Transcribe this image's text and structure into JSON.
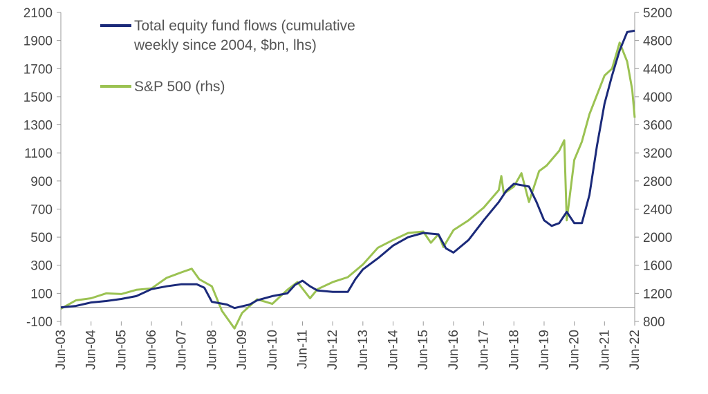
{
  "chart_data": {
    "type": "line",
    "title": "",
    "xlabel": "",
    "ylabel": "",
    "y_left": {
      "min": -100,
      "max": 2100,
      "ticks": [
        -100,
        100,
        300,
        500,
        700,
        900,
        1100,
        1300,
        1500,
        1700,
        1900,
        2100
      ]
    },
    "y_right": {
      "min": 800,
      "max": 5200,
      "ticks": [
        800,
        1200,
        1600,
        2000,
        2400,
        2800,
        3200,
        3600,
        4000,
        4400,
        4800,
        5200
      ]
    },
    "x_range": [
      "2003-06",
      "2022-06"
    ],
    "x_ticks": [
      {
        "date": "2003-06",
        "label": "Jun-03"
      },
      {
        "date": "2004-06",
        "label": "Jun-04"
      },
      {
        "date": "2005-06",
        "label": "Jun-05"
      },
      {
        "date": "2006-06",
        "label": "Jun-06"
      },
      {
        "date": "2007-06",
        "label": "Jun-07"
      },
      {
        "date": "2008-06",
        "label": "Jun-08"
      },
      {
        "date": "2009-06",
        "label": "Jun-09"
      },
      {
        "date": "2010-06",
        "label": "Jun-10"
      },
      {
        "date": "2011-06",
        "label": "Jun-11"
      },
      {
        "date": "2012-06",
        "label": "Jun-12"
      },
      {
        "date": "2013-06",
        "label": "Jun-13"
      },
      {
        "date": "2014-06",
        "label": "Jun-14"
      },
      {
        "date": "2015-06",
        "label": "Jun-15"
      },
      {
        "date": "2016-06",
        "label": "Jun-16"
      },
      {
        "date": "2017-06",
        "label": "Jun-17"
      },
      {
        "date": "2018-06",
        "label": "Jun-18"
      },
      {
        "date": "2019-06",
        "label": "Jun-19"
      },
      {
        "date": "2020-06",
        "label": "Jun-20"
      },
      {
        "date": "2021-06",
        "label": "Jun-21"
      },
      {
        "date": "2022-06",
        "label": "Jun-22"
      }
    ],
    "legend_position": "top-left",
    "grid": false,
    "series": [
      {
        "name": "Total equity fund flows (cumulative weekly since 2004, $bn, lhs)",
        "axis": "left",
        "color": "#1b2a7a",
        "points": [
          [
            "2003-06",
            0
          ],
          [
            "2003-12",
            10
          ],
          [
            "2004-06",
            35
          ],
          [
            "2004-12",
            45
          ],
          [
            "2005-06",
            60
          ],
          [
            "2005-12",
            80
          ],
          [
            "2006-06",
            130
          ],
          [
            "2006-12",
            150
          ],
          [
            "2007-06",
            165
          ],
          [
            "2007-12",
            165
          ],
          [
            "2008-03",
            140
          ],
          [
            "2008-06",
            40
          ],
          [
            "2008-12",
            20
          ],
          [
            "2009-03",
            -5
          ],
          [
            "2009-09",
            20
          ],
          [
            "2009-12",
            50
          ],
          [
            "2010-06",
            80
          ],
          [
            "2010-12",
            100
          ],
          [
            "2011-03",
            160
          ],
          [
            "2011-06",
            190
          ],
          [
            "2011-09",
            150
          ],
          [
            "2011-12",
            120
          ],
          [
            "2012-06",
            110
          ],
          [
            "2012-12",
            110
          ],
          [
            "2013-03",
            200
          ],
          [
            "2013-06",
            270
          ],
          [
            "2013-12",
            350
          ],
          [
            "2014-06",
            440
          ],
          [
            "2014-12",
            500
          ],
          [
            "2015-06",
            530
          ],
          [
            "2015-12",
            520
          ],
          [
            "2016-03",
            420
          ],
          [
            "2016-06",
            390
          ],
          [
            "2016-12",
            480
          ],
          [
            "2017-06",
            620
          ],
          [
            "2017-12",
            750
          ],
          [
            "2018-03",
            830
          ],
          [
            "2018-06",
            880
          ],
          [
            "2018-12",
            860
          ],
          [
            "2019-03",
            750
          ],
          [
            "2019-06",
            620
          ],
          [
            "2019-09",
            580
          ],
          [
            "2019-12",
            600
          ],
          [
            "2020-03",
            680
          ],
          [
            "2020-06",
            600
          ],
          [
            "2020-09",
            600
          ],
          [
            "2020-12",
            800
          ],
          [
            "2021-03",
            1150
          ],
          [
            "2021-06",
            1450
          ],
          [
            "2021-09",
            1650
          ],
          [
            "2021-12",
            1830
          ],
          [
            "2022-03",
            1960
          ],
          [
            "2022-06",
            1970
          ]
        ]
      },
      {
        "name": "S&P 500 (rhs)",
        "axis": "right",
        "color": "#9bc252",
        "points": [
          [
            "2003-06",
            980
          ],
          [
            "2003-12",
            1100
          ],
          [
            "2004-06",
            1130
          ],
          [
            "2004-12",
            1200
          ],
          [
            "2005-06",
            1190
          ],
          [
            "2005-12",
            1250
          ],
          [
            "2006-06",
            1270
          ],
          [
            "2006-12",
            1420
          ],
          [
            "2007-06",
            1500
          ],
          [
            "2007-10",
            1550
          ],
          [
            "2008-01",
            1400
          ],
          [
            "2008-06",
            1300
          ],
          [
            "2008-10",
            950
          ],
          [
            "2009-03",
            700
          ],
          [
            "2009-06",
            920
          ],
          [
            "2009-12",
            1115
          ],
          [
            "2010-06",
            1050
          ],
          [
            "2010-12",
            1250
          ],
          [
            "2011-04",
            1360
          ],
          [
            "2011-09",
            1130
          ],
          [
            "2011-12",
            1260
          ],
          [
            "2012-06",
            1360
          ],
          [
            "2012-12",
            1430
          ],
          [
            "2013-06",
            1610
          ],
          [
            "2013-12",
            1850
          ],
          [
            "2014-06",
            1960
          ],
          [
            "2014-12",
            2060
          ],
          [
            "2015-06",
            2080
          ],
          [
            "2015-09",
            1920
          ],
          [
            "2015-12",
            2040
          ],
          [
            "2016-02",
            1860
          ],
          [
            "2016-06",
            2100
          ],
          [
            "2016-12",
            2240
          ],
          [
            "2017-06",
            2420
          ],
          [
            "2017-12",
            2670
          ],
          [
            "2018-01",
            2870
          ],
          [
            "2018-02",
            2620
          ],
          [
            "2018-06",
            2720
          ],
          [
            "2018-09",
            2910
          ],
          [
            "2018-12",
            2500
          ],
          [
            "2019-04",
            2940
          ],
          [
            "2019-07",
            3020
          ],
          [
            "2019-12",
            3230
          ],
          [
            "2020-02",
            3380
          ],
          [
            "2020-03",
            2240
          ],
          [
            "2020-06",
            3100
          ],
          [
            "2020-09",
            3360
          ],
          [
            "2020-12",
            3750
          ],
          [
            "2021-06",
            4300
          ],
          [
            "2021-09",
            4400
          ],
          [
            "2021-12",
            4770
          ],
          [
            "2022-03",
            4500
          ],
          [
            "2022-05",
            4100
          ],
          [
            "2022-06",
            3700
          ]
        ]
      }
    ]
  }
}
